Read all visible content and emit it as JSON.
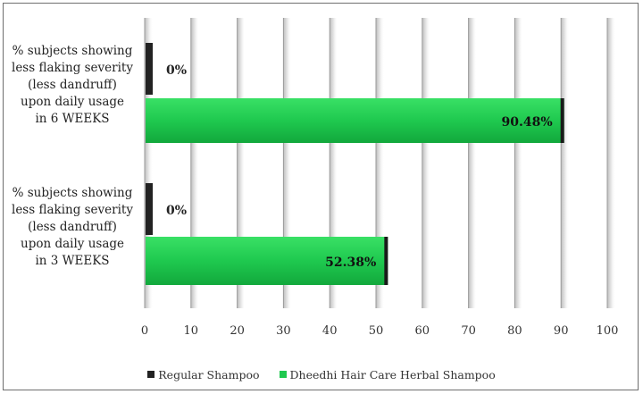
{
  "chart_data": {
    "type": "bar",
    "orientation": "horizontal",
    "categories": [
      "% subjects showing less flaking severity (less dandruff) upon daily usage in 6 WEEKS",
      "% subjects showing less flaking severity (less dandruff) upon daily usage in 3 WEEKS"
    ],
    "category_lines": [
      [
        "% subjects showing",
        "less flaking severity",
        "(less dandruff)",
        "upon daily usage",
        "in 6 WEEKS"
      ],
      [
        "% subjects showing",
        "less flaking severity",
        "(less dandruff)",
        "upon daily usage",
        "in 3 WEEKS"
      ]
    ],
    "series": [
      {
        "name": "Regular Shampoo",
        "values": [
          0,
          0
        ],
        "labels": [
          "0%",
          "0%"
        ],
        "color": "#222222"
      },
      {
        "name": "Dheedhi Hair Care Herbal Shampoo",
        "values": [
          90.48,
          52.38
        ],
        "labels": [
          "90.48%",
          "52.38%"
        ],
        "color": "#1fc94f"
      }
    ],
    "xlim": [
      0,
      100
    ],
    "xticks": [
      0,
      10,
      20,
      30,
      40,
      50,
      60,
      70,
      80,
      90,
      100
    ],
    "grid": true,
    "legend_position": "bottom"
  }
}
